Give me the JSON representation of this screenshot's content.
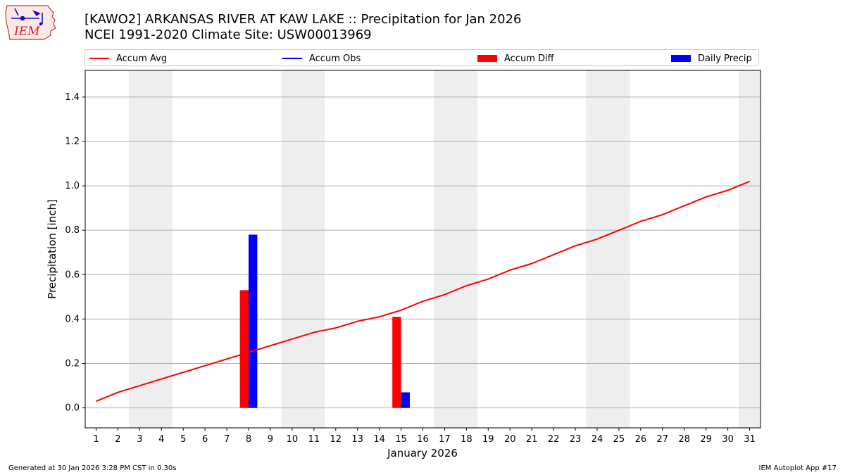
{
  "logo": {
    "text": "IEM",
    "icon": "iowa-state-outline-icon"
  },
  "header": {
    "title_line1": "[KAWO2] ARKANSAS RIVER  AT KAW LAKE :: Precipitation for Jan 2026",
    "title_line2": "NCEI 1991-2020 Climate Site: USW00013969"
  },
  "legend": {
    "placement": "top, above plot",
    "items": [
      {
        "label": "Accum Avg",
        "kind": "line",
        "color": "#ff0000"
      },
      {
        "label": "Accum Obs",
        "kind": "line",
        "color": "#0000ff"
      },
      {
        "label": "Accum Diff",
        "kind": "box",
        "color": "#ff0000"
      },
      {
        "label": "Daily Precip",
        "kind": "box",
        "color": "#0000ff"
      }
    ]
  },
  "footer": {
    "left": "Generated at 30 Jan 2026 3:28 PM CST in 0.30s",
    "right": "IEM Autoplot App #17"
  },
  "chart_data": {
    "type": "bar",
    "xlabel": "January 2026",
    "ylabel": "Precipitation [inch]",
    "x": [
      1,
      2,
      3,
      4,
      5,
      6,
      7,
      8,
      9,
      10,
      11,
      12,
      13,
      14,
      15,
      16,
      17,
      18,
      19,
      20,
      21,
      22,
      23,
      24,
      25,
      26,
      27,
      28,
      29,
      30,
      31
    ],
    "xlim": [
      0.5,
      31.5
    ],
    "ylim": [
      -0.09,
      1.52
    ],
    "yticks": [
      0.0,
      0.2,
      0.4,
      0.6,
      0.8,
      1.0,
      1.2,
      1.4
    ],
    "grid": "horizontal",
    "weekend_shading": [
      [
        2.5,
        4.5
      ],
      [
        9.5,
        11.5
      ],
      [
        16.5,
        18.5
      ],
      [
        23.5,
        25.5
      ],
      [
        30.5,
        31.5
      ]
    ],
    "shading_color": "#eeeeee",
    "series": [
      {
        "name": "Accum Avg",
        "type": "line",
        "color": "#ff0000",
        "values": [
          0.03,
          0.07,
          0.1,
          0.13,
          0.16,
          0.19,
          0.22,
          0.25,
          0.28,
          0.31,
          0.34,
          0.36,
          0.39,
          0.41,
          0.44,
          0.48,
          0.51,
          0.55,
          0.58,
          0.62,
          0.65,
          0.69,
          0.73,
          0.76,
          0.8,
          0.84,
          0.87,
          0.91,
          0.95,
          0.98,
          1.02
        ]
      },
      {
        "name": "Accum Diff",
        "type": "bar",
        "color": "#ff0000",
        "points": [
          {
            "x": 8,
            "y": 0.53
          },
          {
            "x": 15,
            "y": 0.41
          }
        ]
      },
      {
        "name": "Daily Precip",
        "type": "bar",
        "color": "#0000ff",
        "points": [
          {
            "x": 8,
            "y": 0.78
          },
          {
            "x": 15,
            "y": 0.07
          }
        ]
      }
    ]
  }
}
